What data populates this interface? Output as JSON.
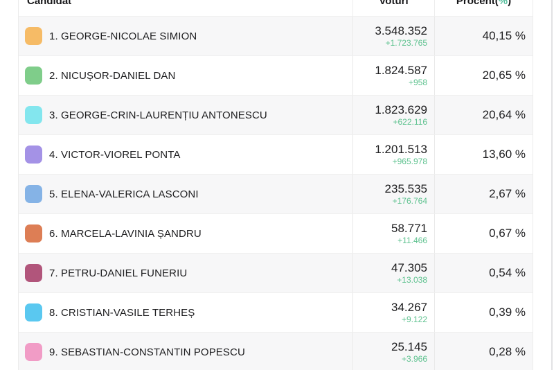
{
  "header": {
    "candidate": "Candidat",
    "votes": "Voturi",
    "percent_prefix": "Procent(",
    "percent_symbol": "%",
    "percent_suffix": ")"
  },
  "table": {
    "rows": [
      {
        "label": "1. GEORGE-NICOLAE SIMION",
        "votes": "3.548.352",
        "delta": "+1.723.765",
        "percent": "40,15 %",
        "color": "#f6bb66"
      },
      {
        "label": "2. NICUȘOR-DANIEL DAN",
        "votes": "1.824.587",
        "delta": "+958",
        "percent": "20,65 %",
        "color": "#7fcd8a"
      },
      {
        "label": "3. GEORGE-CRIN-LAURENȚIU ANTONESCU",
        "votes": "1.823.629",
        "delta": "+622.116",
        "percent": "20,64 %",
        "color": "#83e6ee"
      },
      {
        "label": "4. VICTOR-VIOREL PONTA",
        "votes": "1.201.513",
        "delta": "+965.978",
        "percent": "13,60 %",
        "color": "#a492e6"
      },
      {
        "label": "5. ELENA-VALERICA LASCONI",
        "votes": "235.535",
        "delta": "+176.764",
        "percent": "2,67 %",
        "color": "#85b3e6"
      },
      {
        "label": "6. MARCELA-LAVINIA ȘANDRU",
        "votes": "58.771",
        "delta": "+11.466",
        "percent": "0,67 %",
        "color": "#dd7e55"
      },
      {
        "label": "7. PETRU-DANIEL FUNERIU",
        "votes": "47.305",
        "delta": "+13.038",
        "percent": "0,54 %",
        "color": "#b1557b"
      },
      {
        "label": "8. CRISTIAN-VASILE TERHEȘ",
        "votes": "34.267",
        "delta": "+9.122",
        "percent": "0,39 %",
        "color": "#5ac8f0"
      },
      {
        "label": "9. SEBASTIAN-CONSTANTIN POPESCU",
        "votes": "25.145",
        "delta": "+3.966",
        "percent": "0,28 %",
        "color": "#f19cc6"
      }
    ]
  },
  "colors": {
    "stripe": "#f7f7f8",
    "delta_green": "#5ec28f",
    "text_dark": "#1c1c1e",
    "border": "#ebebeb",
    "percent_accent": "#59bf9e"
  }
}
